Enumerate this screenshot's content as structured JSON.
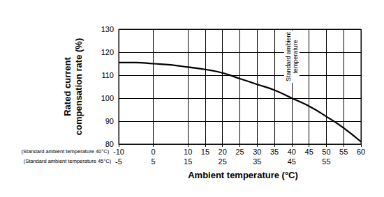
{
  "chart_data": {
    "type": "line",
    "xlabel": "Ambient temperature (°C)",
    "ylabel": "Rated current\ncompensation rate (%)",
    "x": [
      -10,
      -5,
      0,
      5,
      10,
      15,
      20,
      25,
      30,
      35,
      40,
      45,
      50,
      55,
      60
    ],
    "values": [
      115.5,
      115.5,
      115,
      114.5,
      113.5,
      112.5,
      111,
      108.5,
      106,
      103.5,
      100,
      96.5,
      92,
      87,
      81
    ],
    "color": "#000000",
    "line_style": "solid",
    "xlim": [
      -10,
      60
    ],
    "xticks": [
      -10,
      0,
      10,
      15,
      20,
      25,
      30,
      35,
      40,
      45,
      50,
      55,
      60
    ],
    "xticks_caption": "(Standard ambient temperature 40°C)",
    "x2lim": [
      -5,
      65
    ],
    "x2ticks": [
      -5,
      5,
      15,
      25,
      35,
      45,
      55
    ],
    "x2ticks_caption": "(Standard ambient temperature 45°C)",
    "ylim": [
      80,
      130
    ],
    "yticks": [
      80,
      90,
      100,
      110,
      120,
      130
    ],
    "annotations": [
      {
        "text": "Standard ambient\ntemperature",
        "x": 40,
        "y": 118
      }
    ],
    "grid": true
  }
}
